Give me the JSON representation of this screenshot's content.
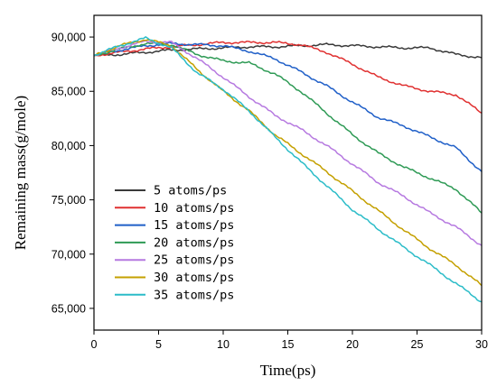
{
  "chart_data": {
    "type": "line",
    "xlabel": "Time(ps)",
    "ylabel": "Remaining mass(g/mole)",
    "xlim": [
      0,
      30
    ],
    "ylim": [
      63000,
      92000
    ],
    "xticks": [
      0,
      5,
      10,
      15,
      20,
      25,
      30
    ],
    "xtick_labels": [
      "0",
      "5",
      "10",
      "15",
      "20",
      "25",
      "30"
    ],
    "yticks": [
      65000,
      70000,
      75000,
      80000,
      85000,
      90000
    ],
    "ytick_labels": [
      "65,000",
      "70,000",
      "75,000",
      "80,000",
      "85,000",
      "90,000"
    ],
    "grid": false,
    "legend_position": "lower-left",
    "x": [
      0,
      2,
      4,
      6,
      8,
      10,
      12,
      14,
      16,
      18,
      20,
      22,
      24,
      26,
      28,
      30
    ],
    "series": [
      {
        "name": "5 atoms/ps",
        "color": "#3a3a3a",
        "values": [
          88300,
          88400,
          88600,
          88800,
          88900,
          89000,
          89100,
          89100,
          89200,
          89300,
          89200,
          89100,
          89000,
          89000,
          88400,
          88100
        ]
      },
      {
        "name": "10 atoms/ps",
        "color": "#e03030",
        "values": [
          88300,
          88600,
          88900,
          89100,
          89300,
          89500,
          89500,
          89500,
          89300,
          88600,
          87500,
          86300,
          85500,
          85000,
          84700,
          83000
        ]
      },
      {
        "name": "15 atoms/ps",
        "color": "#1f5fc8",
        "values": [
          88300,
          88800,
          89200,
          89400,
          89300,
          89200,
          88700,
          88000,
          86800,
          85500,
          84000,
          82600,
          81800,
          80800,
          79800,
          77600
        ]
      },
      {
        "name": "20 atoms/ps",
        "color": "#2e9a55",
        "values": [
          88300,
          88900,
          89400,
          89300,
          88400,
          87800,
          87600,
          86600,
          85000,
          83000,
          81000,
          79300,
          78000,
          77000,
          76000,
          73800
        ]
      },
      {
        "name": "25 atoms/ps",
        "color": "#b679e0",
        "values": [
          88300,
          89000,
          89600,
          89500,
          88000,
          86300,
          84500,
          82800,
          81500,
          80000,
          78300,
          76600,
          75300,
          73800,
          72500,
          70800
        ]
      },
      {
        "name": "30 atoms/ps",
        "color": "#c4a000",
        "values": [
          88300,
          89200,
          89800,
          89200,
          87000,
          85000,
          83200,
          81000,
          79300,
          77600,
          75800,
          74000,
          72200,
          70500,
          69000,
          67100
        ]
      },
      {
        "name": "35 atoms/ps",
        "color": "#2bbcc8",
        "values": [
          88300,
          89200,
          89900,
          89000,
          86700,
          85200,
          83200,
          80800,
          78500,
          76300,
          74100,
          72300,
          70600,
          69000,
          67300,
          65600
        ]
      }
    ]
  }
}
